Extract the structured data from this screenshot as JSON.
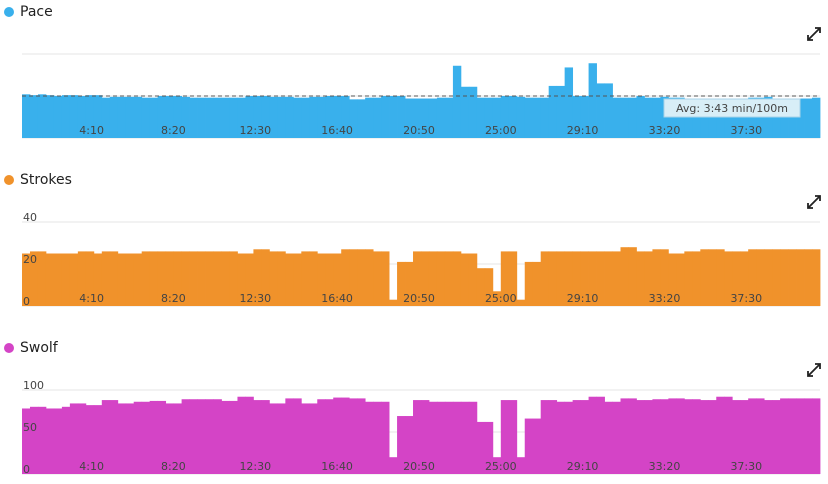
{
  "chart_data": [
    {
      "type": "area",
      "legend": "Pace",
      "color": "#39b0ec",
      "x_tick_labels": [
        "4:10",
        "8:20",
        "12:30",
        "16:40",
        "20:50",
        "25:00",
        "29:10",
        "33:20",
        "37:30"
      ],
      "y_tick_labels": [],
      "ylim": [
        0,
        100
      ],
      "grid": true,
      "avg_line": 50,
      "avg_label": "Avg: 3:43 min/100m",
      "values": [
        52,
        51,
        52,
        51,
        50,
        51,
        51,
        50,
        51,
        51,
        48,
        49,
        49,
        49,
        49,
        48,
        48,
        50,
        50,
        50,
        49,
        48,
        48,
        48,
        48,
        48,
        48,
        48,
        50,
        50,
        50,
        49,
        49,
        49,
        48,
        48,
        49,
        49,
        50,
        50,
        50,
        46,
        46,
        48,
        48,
        50,
        50,
        50,
        47,
        47,
        47,
        47,
        48,
        48,
        86,
        61,
        61,
        48,
        48,
        48,
        50,
        50,
        49,
        48,
        48,
        48,
        62,
        62,
        84,
        50,
        50,
        89,
        65,
        65,
        48,
        48,
        48,
        50,
        48,
        48,
        49,
        48,
        48,
        46,
        46,
        46,
        45,
        45,
        45,
        45,
        45,
        48,
        48,
        49,
        46,
        46,
        46,
        47,
        47,
        48
      ]
    },
    {
      "type": "area",
      "legend": "Strokes",
      "color": "#f0922b",
      "x_tick_labels": [
        "4:10",
        "8:20",
        "12:30",
        "16:40",
        "20:50",
        "25:00",
        "29:10",
        "33:20",
        "37:30"
      ],
      "y_tick_labels": [
        "0",
        "20",
        "40"
      ],
      "ylim": [
        0,
        40
      ],
      "grid": true,
      "values": [
        25,
        26,
        26,
        25,
        25,
        25,
        25,
        26,
        26,
        25,
        26,
        26,
        25,
        25,
        25,
        26,
        26,
        26,
        26,
        26,
        26,
        26,
        26,
        26,
        26,
        26,
        26,
        25,
        25,
        27,
        27,
        26,
        26,
        25,
        25,
        26,
        26,
        25,
        25,
        25,
        27,
        27,
        27,
        27,
        26,
        26,
        3,
        21,
        21,
        26,
        26,
        26,
        26,
        26,
        26,
        25,
        25,
        18,
        18,
        7,
        26,
        26,
        3,
        21,
        21,
        26,
        26,
        26,
        26,
        26,
        26,
        26,
        26,
        26,
        26,
        28,
        28,
        26,
        26,
        27,
        27,
        25,
        25,
        26,
        26,
        27,
        27,
        27,
        26,
        26,
        26,
        27,
        27,
        27,
        27,
        27,
        27,
        27,
        27,
        27
      ]
    },
    {
      "type": "area",
      "legend": "Swolf",
      "color": "#d444c6",
      "x_tick_labels": [
        "4:10",
        "8:20",
        "12:30",
        "16:40",
        "20:50",
        "25:00",
        "29:10",
        "33:20",
        "37:30"
      ],
      "y_tick_labels": [
        "0",
        "50",
        "100"
      ],
      "ylim": [
        0,
        100
      ],
      "grid": true,
      "values": [
        78,
        80,
        80,
        78,
        78,
        80,
        84,
        84,
        82,
        82,
        88,
        88,
        84,
        84,
        86,
        86,
        87,
        87,
        84,
        84,
        89,
        89,
        89,
        89,
        89,
        87,
        87,
        92,
        92,
        88,
        88,
        84,
        84,
        90,
        90,
        84,
        84,
        89,
        89,
        91,
        91,
        90,
        90,
        86,
        86,
        86,
        20,
        69,
        69,
        88,
        88,
        86,
        86,
        86,
        86,
        86,
        86,
        62,
        62,
        20,
        88,
        88,
        20,
        66,
        66,
        88,
        88,
        86,
        86,
        88,
        88,
        92,
        92,
        86,
        86,
        90,
        90,
        88,
        88,
        89,
        89,
        90,
        90,
        89,
        89,
        88,
        88,
        92,
        92,
        88,
        88,
        90,
        90,
        88,
        88,
        90,
        90,
        90,
        90,
        90
      ]
    }
  ]
}
